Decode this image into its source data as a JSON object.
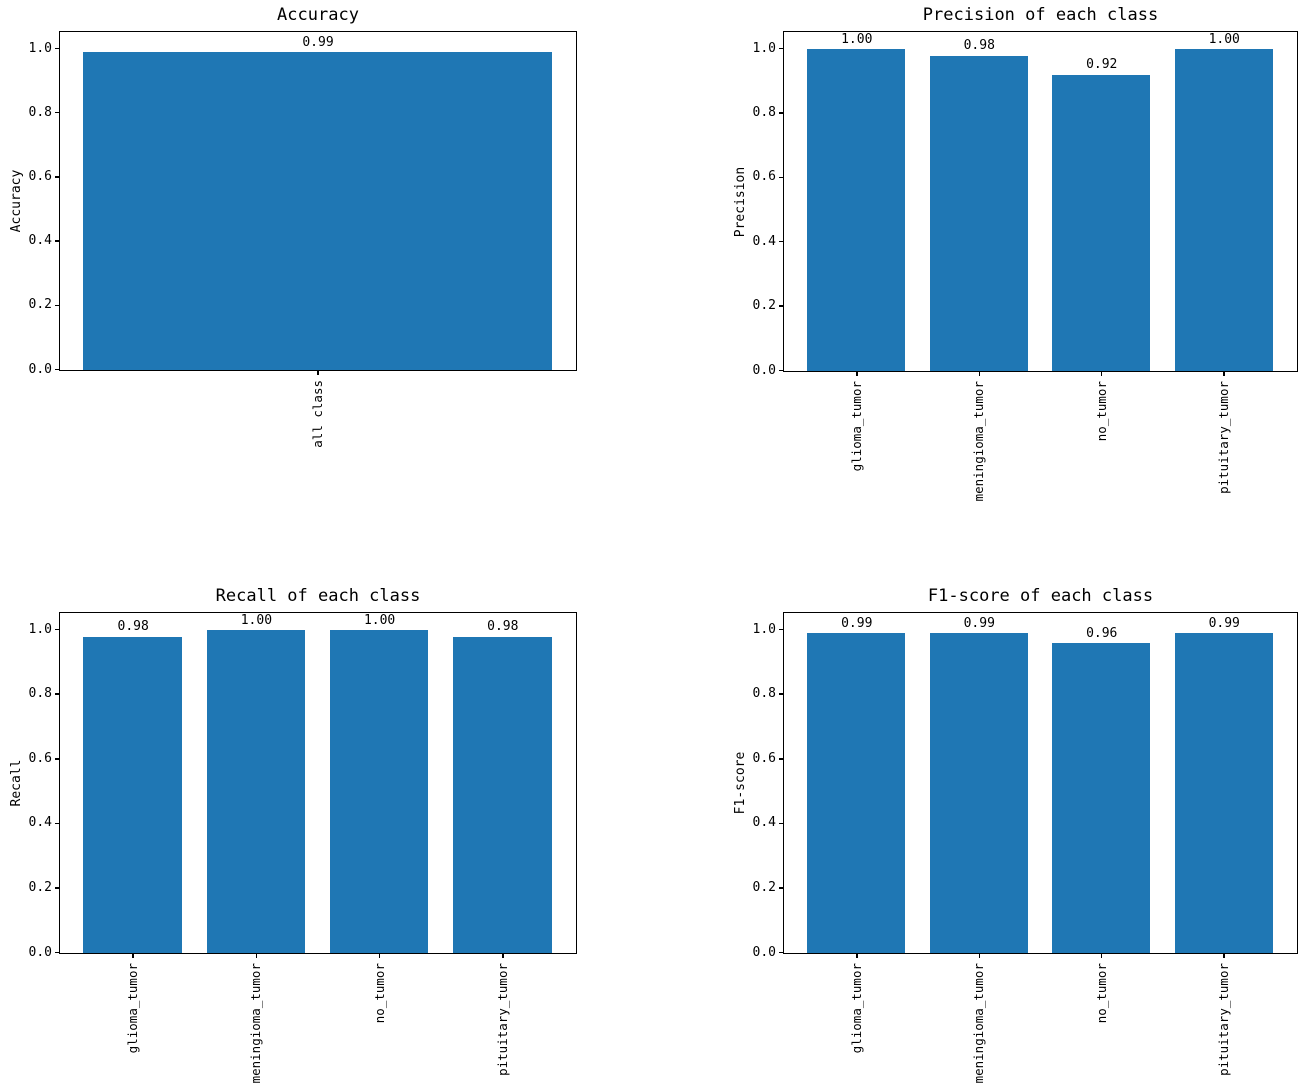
{
  "figure": {
    "background": "#ffffff",
    "bar_color": "#1f77b4",
    "axis_color": "#000000",
    "text_color": "#000000"
  },
  "chart_data": [
    {
      "type": "bar",
      "title": "Accuracy",
      "xlabel": "",
      "ylabel": "Accuracy",
      "categories": [
        "all class"
      ],
      "values": [
        0.99
      ],
      "annotations": [
        "0.99"
      ],
      "bar_width": 0.8,
      "ylim": [
        0,
        1.05
      ],
      "ytick_values": [
        0,
        0.2,
        0.4,
        0.6,
        0.8,
        1.0
      ],
      "yticks": [
        "0.0",
        "0.2",
        "0.4",
        "0.6",
        "0.8",
        "1.0"
      ],
      "grid": false,
      "legend": null,
      "tick_label_rotation": "vertical"
    },
    {
      "type": "bar",
      "title": "Precision of each class",
      "xlabel": "",
      "ylabel": "Precision",
      "categories": [
        "glioma_tumor",
        "meningioma_tumor",
        "no_tumor",
        "pituitary_tumor"
      ],
      "values": [
        1.0,
        0.98,
        0.92,
        1.0
      ],
      "annotations": [
        "1.00",
        "0.98",
        "0.92",
        "1.00"
      ],
      "bar_width": 0.8,
      "ylim": [
        0,
        1.05
      ],
      "ytick_values": [
        0,
        0.2,
        0.4,
        0.6,
        0.8,
        1.0
      ],
      "yticks": [
        "0.0",
        "0.2",
        "0.4",
        "0.6",
        "0.8",
        "1.0"
      ],
      "grid": false,
      "legend": null,
      "tick_label_rotation": "vertical"
    },
    {
      "type": "bar",
      "title": "Recall of each class",
      "xlabel": "",
      "ylabel": "Recall",
      "categories": [
        "glioma_tumor",
        "meningioma_tumor",
        "no_tumor",
        "pituitary_tumor"
      ],
      "values": [
        0.98,
        1.0,
        1.0,
        0.98
      ],
      "annotations": [
        "0.98",
        "1.00",
        "1.00",
        "0.98"
      ],
      "bar_width": 0.8,
      "ylim": [
        0,
        1.05
      ],
      "ytick_values": [
        0,
        0.2,
        0.4,
        0.6,
        0.8,
        1.0
      ],
      "yticks": [
        "0.0",
        "0.2",
        "0.4",
        "0.6",
        "0.8",
        "1.0"
      ],
      "grid": false,
      "legend": null,
      "tick_label_rotation": "vertical"
    },
    {
      "type": "bar",
      "title": "F1-score of each class",
      "xlabel": "",
      "ylabel": "F1-score",
      "categories": [
        "glioma_tumor",
        "meningioma_tumor",
        "no_tumor",
        "pituitary_tumor"
      ],
      "values": [
        0.99,
        0.99,
        0.96,
        0.99
      ],
      "annotations": [
        "0.99",
        "0.99",
        "0.96",
        "0.99"
      ],
      "bar_width": 0.8,
      "ylim": [
        0,
        1.05
      ],
      "ytick_values": [
        0,
        0.2,
        0.4,
        0.6,
        0.8,
        1.0
      ],
      "yticks": [
        "0.0",
        "0.2",
        "0.4",
        "0.6",
        "0.8",
        "1.0"
      ],
      "grid": false,
      "legend": null,
      "tick_label_rotation": "vertical"
    }
  ]
}
